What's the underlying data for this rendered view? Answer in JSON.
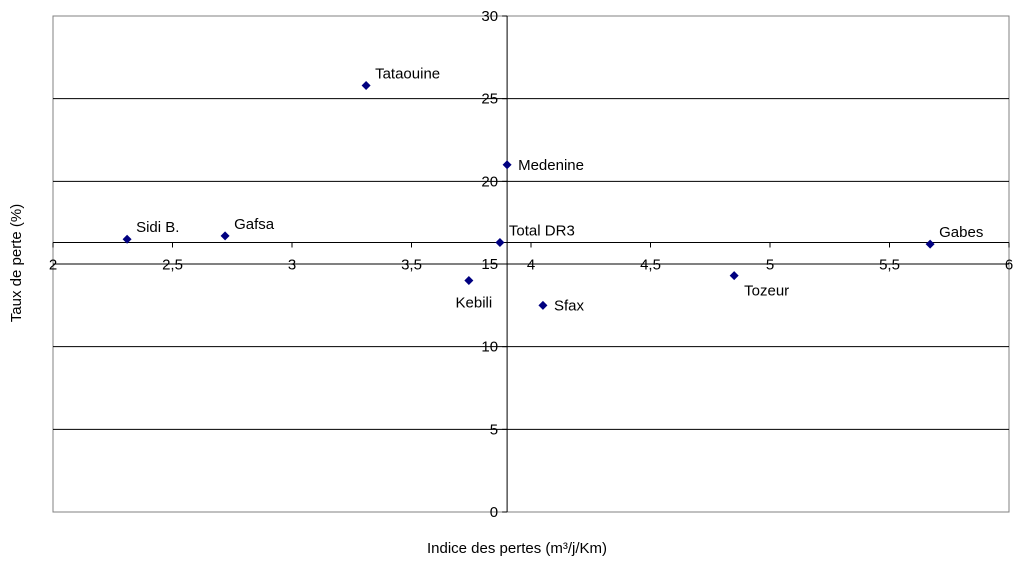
{
  "chart_data": {
    "type": "scatter",
    "title": "",
    "xlabel": "Indice des pertes (m³/j/Km)",
    "ylabel": "Taux de perte (%)",
    "xlim": [
      2,
      6
    ],
    "ylim": [
      0,
      30
    ],
    "x_ticks": [
      2,
      2.5,
      3,
      3.5,
      4,
      4.5,
      5,
      5.5,
      6
    ],
    "x_tick_labels": [
      "2",
      "2,5",
      "3",
      "3,5",
      "4",
      "4,5",
      "5",
      "5,5",
      "6"
    ],
    "y_ticks": [
      0,
      5,
      10,
      15,
      20,
      25,
      30
    ],
    "y_tick_labels": [
      "0",
      "5",
      "10",
      "15",
      "20",
      "25",
      "30"
    ],
    "x_axis_crosses_y_at": 16.3,
    "y_axis_crosses_x_at": 3.9,
    "grid": "horizontal",
    "marker": "diamond",
    "marker_color": "#000080",
    "points": [
      {
        "label": "Tataouine",
        "x": 3.31,
        "y": 25.8,
        "label_pos": "upper-right"
      },
      {
        "label": "Medenine",
        "x": 3.9,
        "y": 21.0,
        "label_pos": "right"
      },
      {
        "label": "Sidi B.",
        "x": 2.31,
        "y": 16.5,
        "label_pos": "upper-right"
      },
      {
        "label": "Gafsa",
        "x": 2.72,
        "y": 16.7,
        "label_pos": "upper-right"
      },
      {
        "label": "Total DR3",
        "x": 3.87,
        "y": 16.3,
        "label_pos": "upper-right"
      },
      {
        "label": "Gabes",
        "x": 5.67,
        "y": 16.2,
        "label_pos": "upper-right"
      },
      {
        "label": "Kebili",
        "x": 3.74,
        "y": 14.0,
        "label_pos": "below"
      },
      {
        "label": "Tozeur",
        "x": 4.85,
        "y": 14.3,
        "label_pos": "lower-right"
      },
      {
        "label": "Sfax",
        "x": 4.05,
        "y": 12.5,
        "label_pos": "right"
      }
    ]
  }
}
